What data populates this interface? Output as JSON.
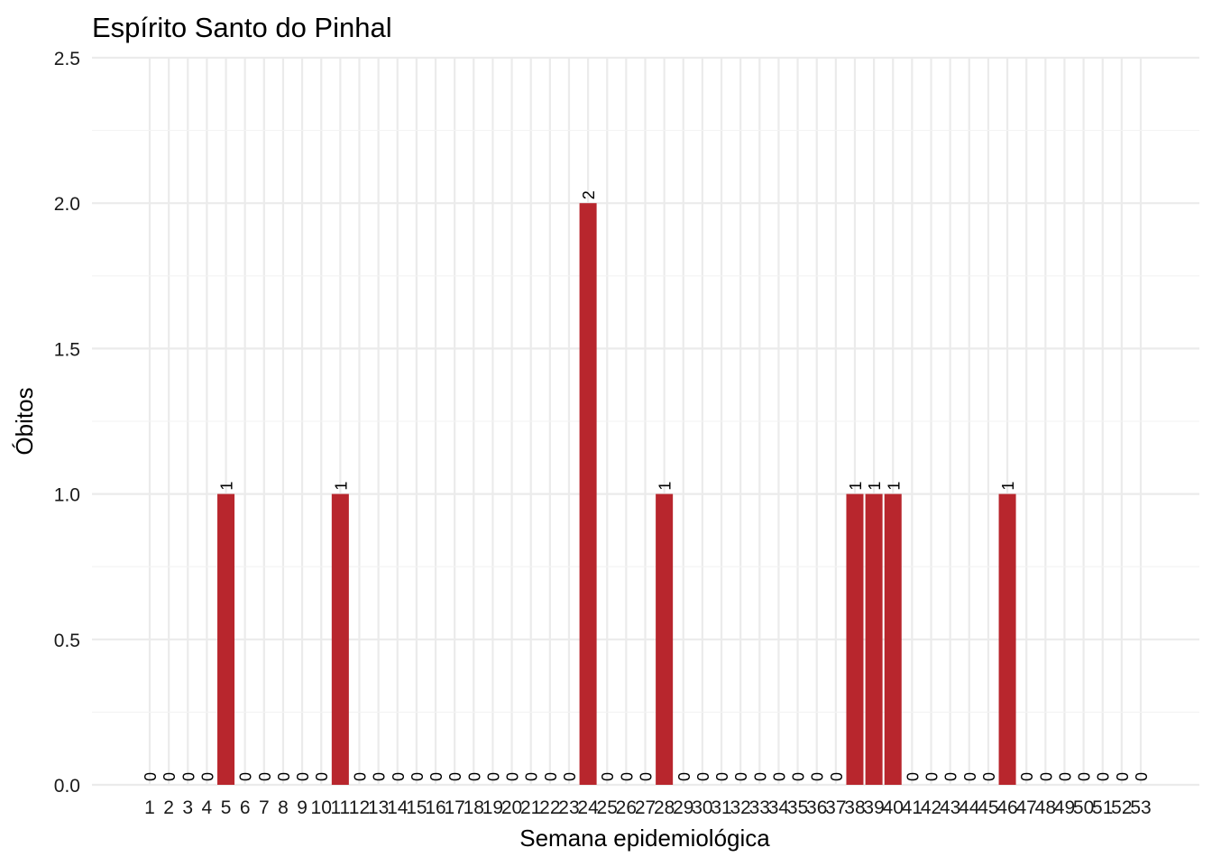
{
  "chart_data": {
    "type": "bar",
    "title": "Espírito Santo do Pinhal",
    "xlabel": "Semana epidemiológica",
    "ylabel": "Óbitos",
    "ylim": [
      0,
      2.5
    ],
    "yticks": [
      "0.0",
      "0.5",
      "1.0",
      "1.5",
      "2.0",
      "2.5"
    ],
    "grid": true,
    "bar_color": "#b8262d",
    "categories": [
      "1",
      "2",
      "3",
      "4",
      "5",
      "6",
      "7",
      "8",
      "9",
      "10",
      "11",
      "12",
      "13",
      "14",
      "15",
      "16",
      "17",
      "18",
      "19",
      "20",
      "21",
      "22",
      "23",
      "24",
      "25",
      "26",
      "27",
      "28",
      "29",
      "30",
      "31",
      "32",
      "33",
      "34",
      "35",
      "36",
      "37",
      "38",
      "39",
      "40",
      "41",
      "42",
      "43",
      "44",
      "45",
      "46",
      "47",
      "48",
      "49",
      "50",
      "51",
      "52",
      "53"
    ],
    "values": [
      0,
      0,
      0,
      0,
      1,
      0,
      0,
      0,
      0,
      0,
      1,
      0,
      0,
      0,
      0,
      0,
      0,
      0,
      0,
      0,
      0,
      0,
      0,
      2,
      0,
      0,
      0,
      1,
      0,
      0,
      0,
      0,
      0,
      0,
      0,
      0,
      0,
      1,
      1,
      1,
      0,
      0,
      0,
      0,
      0,
      1,
      0,
      0,
      0,
      0,
      0,
      0,
      0
    ]
  }
}
